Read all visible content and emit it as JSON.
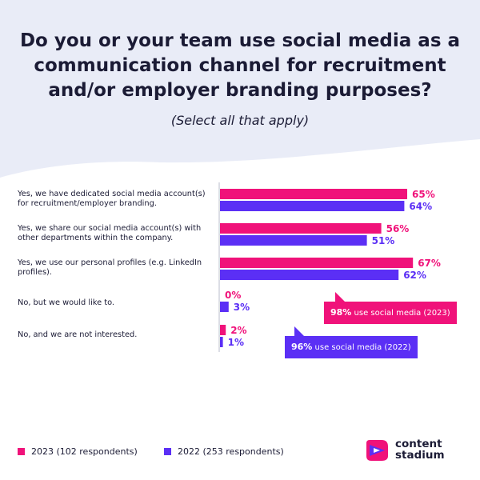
{
  "colors": {
    "c2023": "#f0127a",
    "c2022": "#5b2ff5",
    "text": "#1b1b35",
    "background": "#e9ecf7"
  },
  "header": {
    "title": "Do you or your team use social media as a communication channel for recruitment and/or employer branding purposes?",
    "subtitle": "(Select all that apply)"
  },
  "chart_data": {
    "type": "bar",
    "orientation": "horizontal",
    "categories": [
      "Yes, we have dedicated social media account(s) for recruitment/employer branding.",
      "Yes, we share our social media account(s) with other departments within the company.",
      "Yes, we use our personal profiles (e.g. LinkedIn profiles).",
      "No, but we would like to.",
      "No, and we are not interested."
    ],
    "series": [
      {
        "name": "2023 (102 respondents)",
        "values": [
          65,
          56,
          67,
          0,
          2
        ]
      },
      {
        "name": "2022 (253 respondents)",
        "values": [
          64,
          51,
          62,
          3,
          1
        ]
      }
    ],
    "value_labels": {
      "2023": [
        "65%",
        "56%",
        "67%",
        "0%",
        "2%"
      ],
      "2022": [
        "64%",
        "51%",
        "62%",
        "3%",
        "1%"
      ]
    },
    "xlim": [
      0,
      100
    ],
    "grid": false,
    "legend_position": "bottom-left",
    "annotations": [
      {
        "value": "98%",
        "text": "use social media (2023)"
      },
      {
        "value": "96%",
        "text": "use social media (2022)"
      }
    ]
  },
  "legend": {
    "l2023": "2023 (102 respondents)",
    "l2022": "2022 (253 respondents)"
  },
  "logo": {
    "line1": "content",
    "line2": "stadium",
    "icon": "content-stadium-logo-icon"
  }
}
